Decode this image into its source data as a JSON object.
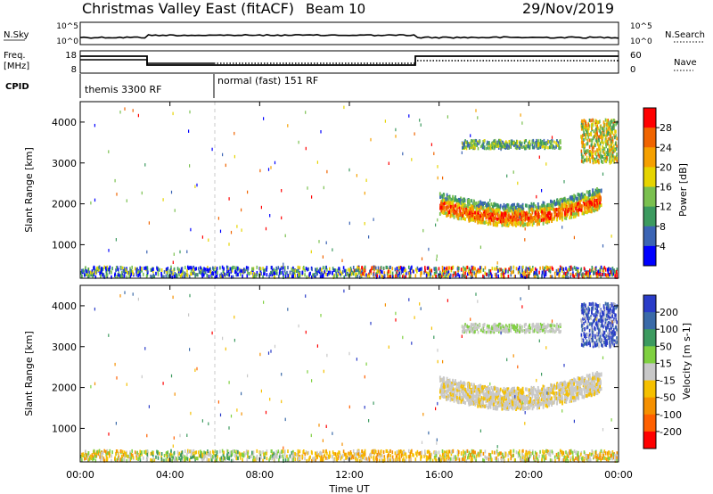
{
  "header": {
    "title": "Christmas Valley East (fitACF)",
    "beam": "Beam 10",
    "date": "29/Nov/2019"
  },
  "top_panels": {
    "nsky_label": "N.Sky",
    "nsearch_label": "N.Search",
    "nsky_ticks": [
      "10^5",
      "10^0"
    ],
    "nsearch_ticks": [
      "10^5",
      "10^0"
    ],
    "freq_label_1": "Freq.",
    "freq_label_2": "[MHz]",
    "freq_ticks": [
      "18",
      "8"
    ],
    "nave_label": "Nave",
    "nave_ticks": [
      "60",
      "0"
    ],
    "cpid_label": "CPID",
    "cpid_segments": [
      {
        "label": "themis 3300 RF",
        "start_hour": 0
      },
      {
        "label": "normal (fast) 151 RF",
        "start_hour": 6
      }
    ]
  },
  "chart_data": [
    {
      "type": "heatmap",
      "name": "power",
      "ylabel": "Slant Range [km]",
      "yticks": [
        1000,
        2000,
        3000,
        4000
      ],
      "ylim": [
        180,
        4500
      ],
      "xlim": [
        0,
        24
      ],
      "colorbar_label": "Power [dB]",
      "colorbar_ticks": [
        4,
        8,
        12,
        16,
        20,
        24,
        28
      ],
      "colorbar_range": [
        0,
        32
      ],
      "colors": [
        "#0000ff",
        "#3b64b4",
        "#3c9a5f",
        "#7ac04f",
        "#e6d400",
        "#f5a000",
        "#f06400",
        "#ff0000"
      ]
    },
    {
      "type": "heatmap",
      "name": "velocity",
      "ylabel": "Slant Range [km]",
      "yticks": [
        1000,
        2000,
        3000,
        4000
      ],
      "ylim": [
        180,
        4500
      ],
      "xlim": [
        0,
        24
      ],
      "xlabel": "Time UT",
      "xticks": [
        "00:00",
        "04:00",
        "08:00",
        "12:00",
        "16:00",
        "20:00",
        "00:00"
      ],
      "colorbar_label": "Velocity [m s-1]",
      "colorbar_ticks": [
        "200",
        "100",
        "50",
        "15",
        "-15",
        "-50",
        "-100",
        "-200"
      ],
      "colors": [
        "#2a3cc8",
        "#3a6aa8",
        "#3c9a5f",
        "#7fd040",
        "#c8c8c8",
        "#f5c000",
        "#f59000",
        "#ff6000",
        "#ff0000"
      ]
    }
  ]
}
